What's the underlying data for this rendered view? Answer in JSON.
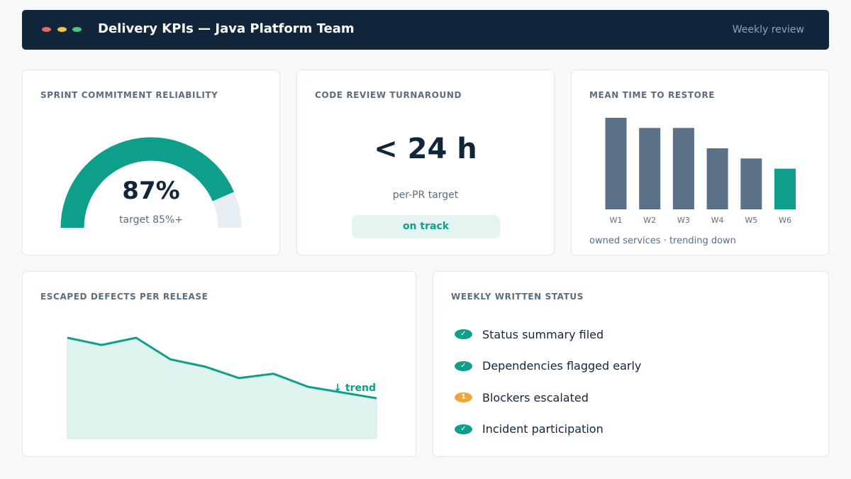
{
  "window": {
    "title": "Delivery KPIs — Java Platform Team",
    "subtitle": "Weekly review",
    "traffic_lights": [
      "#e8695e",
      "#f0c24c",
      "#4cc37a"
    ]
  },
  "colors": {
    "accent": "#0e9f8b",
    "bar": "#5b7187",
    "track": "#e7eef3",
    "warning": "#f0a53a"
  },
  "sprint": {
    "title": "SPRINT COMMITMENT RELIABILITY",
    "value_label": "87%",
    "value": 0.87,
    "target_label": "target 85%+"
  },
  "review": {
    "title": "CODE REVIEW TURNAROUND",
    "value_label": "< 24 h",
    "caption": "per-PR target",
    "status": "on track"
  },
  "mttr": {
    "title": "MEAN TIME TO RESTORE",
    "caption": "owned services · trending down"
  },
  "defects": {
    "title": "ESCAPED DEFECTS PER RELEASE",
    "trend_label": "↓ trend"
  },
  "status": {
    "title": "WEEKLY WRITTEN STATUS",
    "items": [
      {
        "label": "Status summary filed",
        "badge": "✓",
        "state": "done"
      },
      {
        "label": "Dependencies flagged early",
        "badge": "✓",
        "state": "done"
      },
      {
        "label": "Blockers escalated",
        "badge": "1",
        "state": "warning"
      },
      {
        "label": "Incident participation",
        "badge": "✓",
        "state": "done"
      }
    ]
  },
  "chart_data": [
    {
      "type": "bar",
      "categories": [
        "W1",
        "W2",
        "W3",
        "W4",
        "W5",
        "W6"
      ],
      "values": [
        9,
        8,
        8,
        6,
        5,
        4
      ],
      "highlight_index": 5,
      "ylim": [
        0,
        9
      ]
    },
    {
      "type": "area",
      "x": [
        1,
        2,
        3,
        4,
        5,
        6,
        7,
        8,
        9,
        10
      ],
      "values": [
        14,
        13,
        14,
        11,
        10,
        8.4,
        9,
        7.2,
        6.4,
        5.6
      ],
      "ylim": [
        0,
        14
      ]
    }
  ]
}
